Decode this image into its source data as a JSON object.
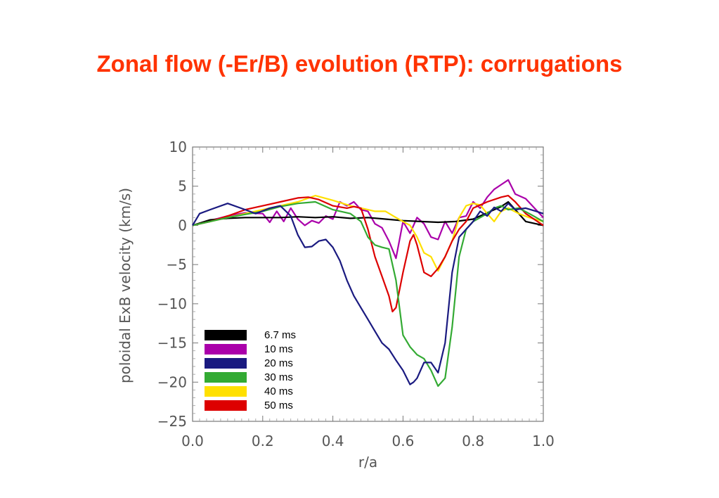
{
  "title": "Zonal flow (-Er/B) evolution (RTP): corrugations",
  "chart_data": {
    "type": "line",
    "title": "",
    "xlabel": "r/a",
    "ylabel": "poloidal ExB velocity (km/s)",
    "xlim": [
      0.0,
      1.0
    ],
    "ylim": [
      -25,
      10
    ],
    "xticks": [
      "0.0",
      "0.2",
      "0.4",
      "0.6",
      "0.8",
      "1.0"
    ],
    "yticks": [
      "10",
      "5",
      "0",
      "−5",
      "−10",
      "−15",
      "−20",
      "−25"
    ],
    "legend_position": "bottom-left",
    "series": [
      {
        "name": "6.7 ms",
        "color": "#000000",
        "x": [
          0.0,
          0.05,
          0.1,
          0.15,
          0.2,
          0.25,
          0.3,
          0.35,
          0.4,
          0.45,
          0.5,
          0.55,
          0.6,
          0.65,
          0.7,
          0.75,
          0.8,
          0.85,
          0.88,
          0.9,
          0.92,
          0.95,
          1.0
        ],
        "y": [
          0.0,
          0.7,
          0.9,
          1.0,
          1.0,
          1.0,
          1.1,
          1.0,
          1.1,
          0.9,
          1.0,
          0.8,
          0.6,
          0.5,
          0.4,
          0.5,
          0.8,
          1.8,
          2.4,
          3.0,
          2.0,
          0.5,
          0.0
        ]
      },
      {
        "name": "10 ms",
        "color": "#aa00aa",
        "x": [
          0.0,
          0.05,
          0.1,
          0.15,
          0.2,
          0.22,
          0.24,
          0.26,
          0.28,
          0.3,
          0.32,
          0.34,
          0.36,
          0.38,
          0.4,
          0.42,
          0.44,
          0.46,
          0.48,
          0.5,
          0.52,
          0.54,
          0.56,
          0.58,
          0.6,
          0.62,
          0.64,
          0.66,
          0.68,
          0.7,
          0.72,
          0.74,
          0.76,
          0.78,
          0.8,
          0.82,
          0.84,
          0.86,
          0.88,
          0.9,
          0.92,
          0.95,
          1.0
        ],
        "y": [
          0.0,
          0.6,
          1.2,
          1.6,
          1.5,
          0.4,
          1.8,
          0.5,
          2.2,
          0.8,
          0.0,
          0.6,
          0.3,
          1.2,
          0.8,
          3.0,
          2.5,
          3.0,
          2.0,
          1.8,
          0.2,
          -0.3,
          -2.0,
          -4.2,
          0.5,
          -1.0,
          1.0,
          0.2,
          -1.5,
          -1.8,
          0.5,
          -1.0,
          1.0,
          1.2,
          3.0,
          2.2,
          3.6,
          4.6,
          5.2,
          5.8,
          4.0,
          3.4,
          1.0
        ]
      },
      {
        "name": "20 ms",
        "color": "#1a1a80",
        "x": [
          0.0,
          0.02,
          0.05,
          0.1,
          0.15,
          0.18,
          0.22,
          0.25,
          0.28,
          0.3,
          0.32,
          0.34,
          0.36,
          0.38,
          0.4,
          0.42,
          0.44,
          0.46,
          0.48,
          0.5,
          0.52,
          0.54,
          0.56,
          0.58,
          0.6,
          0.62,
          0.63,
          0.64,
          0.66,
          0.68,
          0.7,
          0.72,
          0.74,
          0.76,
          0.78,
          0.8,
          0.82,
          0.84,
          0.86,
          0.88,
          0.9,
          0.92,
          0.95,
          0.98,
          1.0
        ],
        "y": [
          0.0,
          1.5,
          2.0,
          2.8,
          2.0,
          1.5,
          2.2,
          2.5,
          1.2,
          -1.2,
          -2.8,
          -2.7,
          -2.0,
          -1.8,
          -2.8,
          -4.5,
          -7.0,
          -9.0,
          -10.5,
          -12.0,
          -13.5,
          -15.0,
          -15.8,
          -17.2,
          -18.5,
          -20.3,
          -20.0,
          -19.5,
          -17.5,
          -17.5,
          -18.8,
          -15.0,
          -6.0,
          -1.5,
          -0.5,
          0.5,
          1.8,
          1.2,
          2.3,
          1.8,
          2.8,
          2.0,
          2.2,
          1.8,
          1.5
        ]
      },
      {
        "name": "30 ms",
        "color": "#33aa33",
        "x": [
          0.0,
          0.05,
          0.1,
          0.15,
          0.2,
          0.25,
          0.3,
          0.35,
          0.4,
          0.45,
          0.48,
          0.5,
          0.52,
          0.54,
          0.56,
          0.58,
          0.6,
          0.62,
          0.64,
          0.66,
          0.68,
          0.7,
          0.72,
          0.74,
          0.76,
          0.78,
          0.8,
          0.82,
          0.84,
          0.86,
          0.88,
          0.9,
          0.93,
          0.96,
          1.0
        ],
        "y": [
          0.0,
          0.5,
          1.0,
          1.4,
          1.8,
          2.4,
          2.8,
          3.0,
          2.0,
          1.5,
          0.5,
          -1.5,
          -2.5,
          -2.8,
          -3.0,
          -7.0,
          -14.0,
          -15.5,
          -16.5,
          -17.0,
          -18.5,
          -20.5,
          -19.5,
          -13.0,
          -4.0,
          -0.5,
          0.5,
          1.0,
          1.5,
          2.2,
          2.5,
          2.0,
          2.2,
          1.5,
          0.5
        ]
      },
      {
        "name": "40 ms",
        "color": "#ffe000",
        "x": [
          0.0,
          0.05,
          0.1,
          0.15,
          0.2,
          0.25,
          0.3,
          0.35,
          0.4,
          0.45,
          0.5,
          0.52,
          0.55,
          0.58,
          0.6,
          0.62,
          0.64,
          0.66,
          0.68,
          0.7,
          0.72,
          0.74,
          0.76,
          0.78,
          0.8,
          0.82,
          0.84,
          0.86,
          0.88,
          0.9,
          0.93,
          0.96,
          1.0
        ],
        "y": [
          0.0,
          0.5,
          1.0,
          1.5,
          2.0,
          2.5,
          3.0,
          3.8,
          3.2,
          2.5,
          2.0,
          1.8,
          1.8,
          1.0,
          0.5,
          0.0,
          -1.5,
          -3.5,
          -4.0,
          -5.8,
          -4.0,
          -2.0,
          1.0,
          2.5,
          2.8,
          2.6,
          1.5,
          0.5,
          1.8,
          2.2,
          1.5,
          1.0,
          0.5
        ]
      },
      {
        "name": "50 ms",
        "color": "#dd0000",
        "x": [
          0.0,
          0.05,
          0.1,
          0.15,
          0.2,
          0.25,
          0.3,
          0.33,
          0.36,
          0.4,
          0.44,
          0.46,
          0.48,
          0.5,
          0.52,
          0.54,
          0.56,
          0.57,
          0.58,
          0.6,
          0.62,
          0.63,
          0.64,
          0.66,
          0.68,
          0.7,
          0.72,
          0.74,
          0.76,
          0.78,
          0.8,
          0.84,
          0.88,
          0.9,
          0.92,
          0.95,
          1.0
        ],
        "y": [
          0.0,
          0.5,
          1.2,
          2.0,
          2.5,
          3.0,
          3.5,
          3.6,
          3.3,
          2.5,
          2.2,
          2.4,
          2.2,
          -0.5,
          -4.0,
          -6.5,
          -9.0,
          -11.0,
          -10.5,
          -6.0,
          -2.0,
          -1.2,
          -2.5,
          -6.0,
          -6.5,
          -5.5,
          -4.0,
          -2.0,
          -0.5,
          0.5,
          2.2,
          3.0,
          3.6,
          3.8,
          3.0,
          1.5,
          0.0
        ]
      }
    ]
  }
}
